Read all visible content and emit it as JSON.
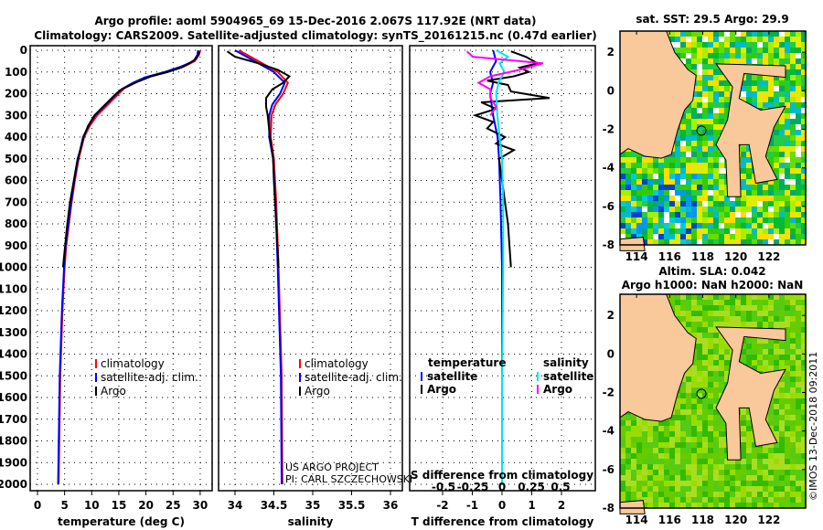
{
  "title_line1": "Argo profile: aoml 5904965_69 15-Dec-2016 2.067S 117.92E (NRT data)",
  "title_line2": "Climatology: CARS2009. Satellite-adjusted climatology: synTS_20161215.nc (0.47d earlier)",
  "colors": {
    "climatology": "#ff0000",
    "satellite": "#0000ff",
    "argo": "#000000",
    "sal_satellite": "#00e5ee",
    "sal_argo": "#ff00ff",
    "land": "#f9c89b",
    "ocean": "#33cc00"
  },
  "chart_data": [
    {
      "type": "line",
      "xlabel": "temperature (deg C)",
      "ylabel": "",
      "xlim": [
        -1,
        31
      ],
      "ylim": [
        2000,
        0
      ],
      "xticks": [
        "0",
        "5",
        "10",
        "15",
        "20",
        "25",
        "30"
      ],
      "xtick_values": [
        0,
        5,
        10,
        15,
        20,
        25,
        30
      ],
      "yticks": [
        "0",
        "100",
        "200",
        "300",
        "400",
        "500",
        "600",
        "700",
        "800",
        "900",
        "1000",
        "1100",
        "1200",
        "1300",
        "1400",
        "1500",
        "1600",
        "1700",
        "1800",
        "1900",
        "2000"
      ],
      "legend": [
        "climatology",
        "satellite-adj. clim.",
        "Argo"
      ],
      "legend_placement": "bottom-right",
      "series": [
        {
          "name": "climatology",
          "depth": [
            0,
            20,
            50,
            75,
            100,
            125,
            150,
            175,
            200,
            250,
            300,
            350,
            400,
            500,
            600,
            700,
            800,
            900,
            1000,
            1200,
            1500,
            2000
          ],
          "values": [
            30,
            29.8,
            29,
            27,
            24,
            20,
            18,
            16,
            15,
            13,
            11,
            9.6,
            8.6,
            7.6,
            6.9,
            6.3,
            5.8,
            5.3,
            5,
            4.6,
            4.2,
            3.9
          ]
        },
        {
          "name": "satellite-adj. clim.",
          "depth": [
            0,
            20,
            50,
            75,
            100,
            125,
            150,
            175,
            200,
            250,
            300,
            350,
            400,
            500,
            600,
            700,
            800,
            900,
            1000,
            1200,
            1500,
            2000
          ],
          "values": [
            29.6,
            29.5,
            28.8,
            26.5,
            23.5,
            19.8,
            17.6,
            15.8,
            14.6,
            12.6,
            10.6,
            9.4,
            8.4,
            7.5,
            6.8,
            6.2,
            5.7,
            5.2,
            4.9,
            4.5,
            4.1,
            3.8
          ]
        },
        {
          "name": "Argo",
          "depth": [
            5,
            20,
            40,
            60,
            80,
            100,
            120,
            150,
            180,
            200,
            250,
            300,
            350,
            400,
            450,
            500,
            600,
            700,
            800,
            900,
            1000
          ],
          "values": [
            29.9,
            29.7,
            29.2,
            28,
            26.5,
            24,
            21,
            18,
            15.5,
            14.5,
            12.5,
            10.5,
            9.3,
            8.5,
            8,
            7.4,
            6.7,
            6,
            5.5,
            5.1,
            4.7
          ]
        }
      ]
    },
    {
      "type": "line",
      "xlabel": "salinity",
      "xlim": [
        33.8,
        36.2
      ],
      "ylim": [
        2000,
        0
      ],
      "xticks": [
        "34",
        "34.5",
        "35",
        "35.5",
        "36"
      ],
      "xtick_values": [
        34,
        34.5,
        35,
        35.5,
        36
      ],
      "legend": [
        "climatology",
        "satellite-adj. clim.",
        "Argo"
      ],
      "legend_placement": "bottom-right",
      "annotation": [
        "US ARGO PROJECT",
        "PI: CARL SZCZECHOWSKI"
      ],
      "series": [
        {
          "name": "climatology",
          "depth": [
            0,
            50,
            100,
            150,
            200,
            250,
            300,
            400,
            500,
            700,
            1000,
            1500,
            2000
          ],
          "values": [
            34.05,
            34.3,
            34.55,
            34.68,
            34.62,
            34.52,
            34.47,
            34.46,
            34.5,
            34.53,
            34.56,
            34.6,
            34.61
          ]
        },
        {
          "name": "satellite-adj. clim.",
          "depth": [
            0,
            50,
            100,
            150,
            200,
            250,
            300,
            400,
            500,
            700,
            1000,
            1500,
            2000
          ],
          "values": [
            34.0,
            34.25,
            34.5,
            34.64,
            34.58,
            34.48,
            34.44,
            34.44,
            34.49,
            34.52,
            34.55,
            34.59,
            34.6
          ]
        },
        {
          "name": "Argo",
          "depth": [
            5,
            30,
            60,
            90,
            120,
            150,
            180,
            220,
            260,
            300,
            400,
            500,
            600,
            800,
            1000
          ],
          "values": [
            33.9,
            34.0,
            34.3,
            34.55,
            34.7,
            34.62,
            34.48,
            34.4,
            34.4,
            34.42,
            34.45,
            34.49,
            34.5,
            34.53,
            34.56
          ]
        }
      ]
    },
    {
      "type": "line",
      "xlabel": "T difference from climatology",
      "xlabel2": "S difference from climatology",
      "xlim": [
        -3.1,
        3.1
      ],
      "ylim": [
        2000,
        0
      ],
      "xticks": [
        "-2",
        "-1",
        "0",
        "1",
        "2"
      ],
      "xtick_values": [
        -2,
        -1,
        0,
        1,
        2
      ],
      "xticks2": [
        "-0.5",
        "-0.25",
        "0",
        "0.25",
        "0.5"
      ],
      "xtick2_values": [
        -0.5,
        -0.25,
        0,
        0.25,
        0.5
      ],
      "legend_temperature": {
        "title": "temperature",
        "items": [
          "satellite",
          "Argo"
        ]
      },
      "legend_salinity": {
        "title": "salinity",
        "items": [
          "satellite",
          "Argo"
        ]
      },
      "series": [
        {
          "name": "T satellite",
          "depth": [
            0,
            50,
            100,
            150,
            200,
            300,
            400,
            500,
            700,
            1000,
            1500,
            2000
          ],
          "values": [
            -0.3,
            -0.2,
            -0.4,
            -0.3,
            -0.4,
            -0.3,
            -0.15,
            -0.1,
            -0.05,
            0,
            0,
            0
          ]
        },
        {
          "name": "T Argo",
          "depth": [
            5,
            30,
            60,
            80,
            100,
            120,
            140,
            160,
            190,
            220,
            240,
            270,
            300,
            330,
            360,
            400,
            430,
            460,
            500,
            600,
            800,
            1000
          ],
          "values": [
            0.3,
            0.8,
            1.2,
            0.6,
            0.9,
            0.4,
            -0.5,
            0.2,
            0.3,
            1.6,
            -0.7,
            -0.2,
            -0.9,
            -0.3,
            -0.5,
            0.1,
            -0.2,
            0.4,
            -0.1,
            0,
            0.2,
            0.3
          ]
        },
        {
          "name": "S satellite",
          "depth": [
            0,
            30,
            60,
            100,
            150,
            200,
            300,
            400,
            500,
            700,
            1000,
            1500,
            2000
          ],
          "values": [
            -0.05,
            0.05,
            -0.02,
            0.02,
            -0.03,
            -0.05,
            -0.04,
            -0.02,
            0,
            0.01,
            0.01,
            0,
            0
          ]
        },
        {
          "name": "S Argo",
          "depth": [
            5,
            30,
            60,
            90,
            120,
            150,
            180,
            220,
            260,
            300
          ],
          "values": [
            -0.3,
            -0.25,
            0.35,
            0.15,
            -0.1,
            -0.2,
            -0.1,
            -0.1,
            -0.05,
            -0.1
          ]
        }
      ]
    }
  ],
  "map_sst": {
    "title": "sat. SST: 29.5 Argo: 29.9",
    "xticks": [
      "114",
      "116",
      "118",
      "120",
      "122"
    ],
    "yticks": [
      "2",
      "0",
      "-2",
      "-4",
      "-6",
      "-8"
    ]
  },
  "map_sla": {
    "title_line1": "Altim. SLA: 0.042",
    "title_line2": "Argo h1000: NaN h2000: NaN",
    "xticks": [
      "114",
      "116",
      "118",
      "120",
      "122"
    ],
    "yticks": [
      "2",
      "0",
      "-2",
      "-4",
      "-6",
      "-8"
    ]
  },
  "credit": "©IMOS 13-Dec-2018 09:2011"
}
